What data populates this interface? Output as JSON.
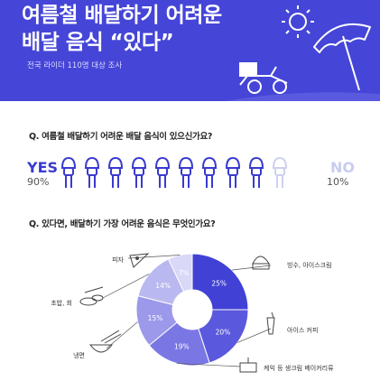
{
  "banner": {
    "title_line1": "여름철 배달하기 어려운",
    "title_line2": "배달 음식 “있다”",
    "subtitle": "전국 라이더 110명 대상 조사"
  },
  "question1": "Q. 여름철 배달하기 어려운 배달 음식이 있으신가요?",
  "yes_no": {
    "yes_label": "YES",
    "yes_percent": "90%",
    "no_label": "NO",
    "no_percent": "10%",
    "yes_icons": 9,
    "no_icons": 1,
    "colors": {
      "yes": "#3a3ad0",
      "no": "#cdd0f0"
    }
  },
  "question2": "Q. 있다면, 배달하기 가장 어려운 음식은 무엇인가요?",
  "chart_data": {
    "type": "pie",
    "categories": [
      "빙수, 아이스크림",
      "아이스 커피",
      "케익 등 생크림 베이커리류",
      "냉면",
      "초밥, 회",
      "피자"
    ],
    "values": [
      25,
      20,
      19,
      15,
      14,
      7
    ],
    "labels": [
      "25%",
      "20%",
      "19%",
      "15%",
      "14%",
      "7%"
    ],
    "colors": [
      "#4141d6",
      "#5a58dd",
      "#7a77e4",
      "#9c99ea",
      "#bab8f0",
      "#d9d8f7"
    ],
    "icons": [
      "shaved-ice-icon",
      "iced-coffee-icon",
      "cake-icon",
      "cold-noodle-icon",
      "sushi-icon",
      "pizza-icon"
    ]
  }
}
